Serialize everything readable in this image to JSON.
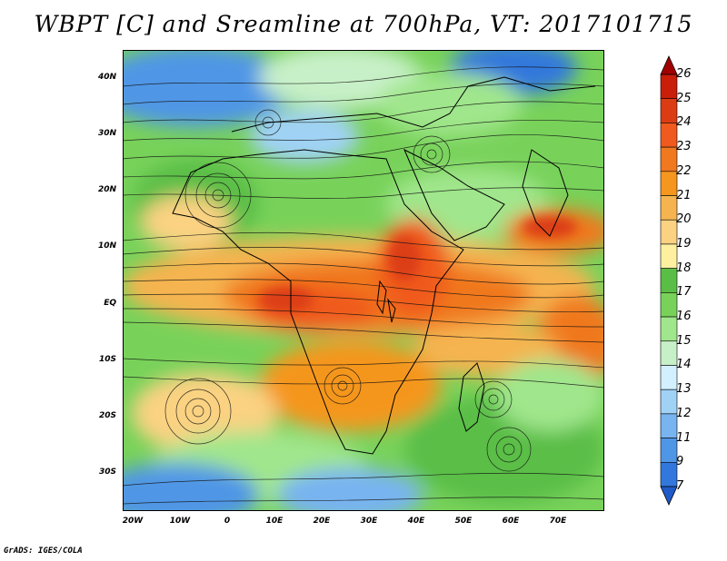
{
  "title": "WBPT [C] and Sreamline at 700hPa, VT: 2017101715",
  "footer": "GrADS: IGES/COLA",
  "map": {
    "lat_labels": [
      "40N",
      "30N",
      "20N",
      "10N",
      "EQ",
      "10S",
      "20S",
      "30S"
    ],
    "lon_labels": [
      "20W",
      "10W",
      "0",
      "10E",
      "20E",
      "30E",
      "40E",
      "50E",
      "60E",
      "70E"
    ]
  },
  "colorbar": {
    "labels": [
      "26",
      "25",
      "24",
      "23",
      "22",
      "21",
      "20",
      "19",
      "18",
      "17",
      "16",
      "15",
      "14",
      "13",
      "12",
      "11",
      "9",
      "7"
    ],
    "colors": [
      "#a00000",
      "#c81e0a",
      "#dc3c14",
      "#f05a1e",
      "#f0781e",
      "#f5961e",
      "#f5b450",
      "#fad282",
      "#fff0a0",
      "#5abe46",
      "#78d25a",
      "#a0e68c",
      "#c8f0c8",
      "#d2f0ff",
      "#a0d2f5",
      "#78b4f0",
      "#5096e6",
      "#3278dc",
      "#1e5ac8"
    ]
  }
}
